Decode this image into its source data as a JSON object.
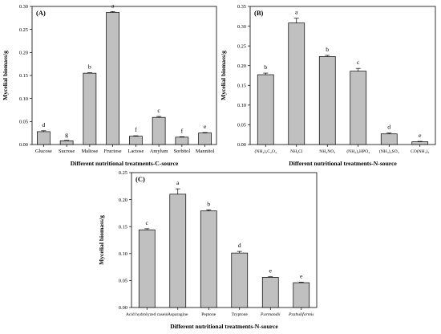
{
  "chart_data": [
    {
      "type": "bar",
      "panel_label": "(A)",
      "ylabel": "Mycelial biomass/g",
      "xlabel": "Different nutritional treatments-C-source",
      "ylim": [
        0,
        0.3
      ],
      "yticks": [
        "0.00",
        "0.05",
        "0.10",
        "0.15",
        "0.20",
        "0.25",
        "0.30"
      ],
      "categories": [
        "Glucose",
        "Sucrose",
        "Maltose",
        "Fructose",
        "Lactose",
        "Amylum",
        "Sorbitol",
        "Mannitol"
      ],
      "values": [
        0.028,
        0.008,
        0.155,
        0.287,
        0.018,
        0.059,
        0.016,
        0.025
      ],
      "errors": [
        0.002,
        0.001,
        0.001,
        0.002,
        0.001,
        0.002,
        0.001,
        0.001
      ],
      "letters": [
        "d",
        "g",
        "b",
        "a",
        "f",
        "c",
        "f",
        "e"
      ]
    },
    {
      "type": "bar",
      "panel_label": "(B)",
      "ylabel": "Mycelial biomass/g",
      "xlabel": "Different nutritional treatments-N-source",
      "ylim": [
        0,
        0.35
      ],
      "yticks": [
        "0.00",
        "0.05",
        "0.10",
        "0.15",
        "0.20",
        "0.25",
        "0.30",
        "0.35"
      ],
      "categories": [
        "(NH₄)₂C₂O₄",
        "NH₄Cl",
        "NH₄NO₃",
        "(NH₄)₂HPO₄",
        "(NH₄)₂SO₄",
        "CO(NH₂)₂"
      ],
      "values": [
        0.177,
        0.308,
        0.223,
        0.186,
        0.027,
        0.007
      ],
      "errors": [
        0.004,
        0.012,
        0.003,
        0.007,
        0.002,
        0.001
      ],
      "letters": [
        "b",
        "a",
        "b",
        "c",
        "d",
        "e"
      ]
    },
    {
      "type": "bar",
      "panel_label": "(C)",
      "ylabel": "Mycelial biomass/g",
      "xlabel": "Different nutritional treatments-N-source",
      "ylim": [
        0,
        0.25
      ],
      "yticks": [
        "0.00",
        "0.05",
        "0.10",
        "0.15",
        "0.20",
        "0.25"
      ],
      "categories": [
        "Acid hydrolyzed casein",
        "Asparagine",
        "Peptone",
        "Tryptone",
        "P.armandii",
        "P.tabuliformis"
      ],
      "italic_categories": [
        false,
        false,
        false,
        false,
        true,
        true
      ],
      "values": [
        0.144,
        0.21,
        0.179,
        0.101,
        0.056,
        0.046
      ],
      "errors": [
        0.002,
        0.01,
        0.002,
        0.003,
        0.001,
        0.001
      ],
      "letters": [
        "c",
        "a",
        "b",
        "d",
        "e",
        "e"
      ]
    }
  ]
}
